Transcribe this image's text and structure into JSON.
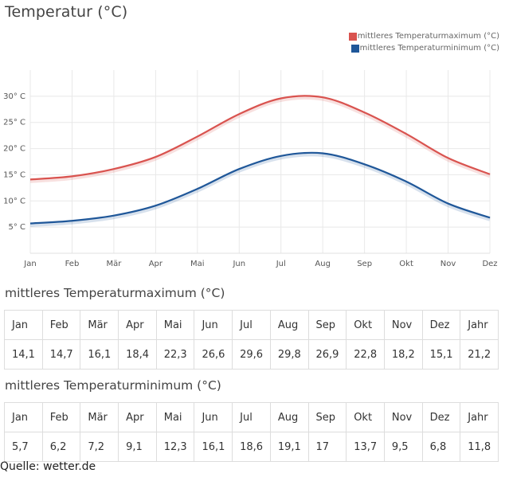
{
  "title": "Temperatur (°C)",
  "legend": {
    "max_label": "mittleres Temperaturmaximum (°C)",
    "min_label": "mittleres Temperaturminimum (°C)"
  },
  "colors": {
    "max": "#d9534f",
    "min": "#1f5799"
  },
  "chart_data": {
    "type": "line",
    "title": "Temperatur (°C)",
    "categories": [
      "Jan",
      "Feb",
      "Mär",
      "Apr",
      "Mai",
      "Jun",
      "Jul",
      "Aug",
      "Sep",
      "Okt",
      "Nov",
      "Dez"
    ],
    "y_ticks": [
      "5° C",
      "10° C",
      "15° C",
      "20° C",
      "25° C",
      "30° C"
    ],
    "y_tick_values": [
      5,
      10,
      15,
      20,
      25,
      30
    ],
    "ylim": [
      0,
      35
    ],
    "grid": true,
    "legend_position": "top-right",
    "series": [
      {
        "name": "mittleres Temperaturmaximum (°C)",
        "color": "#d9534f",
        "values": [
          14.1,
          14.7,
          16.1,
          18.4,
          22.3,
          26.6,
          29.6,
          29.8,
          26.9,
          22.8,
          18.2,
          15.1
        ]
      },
      {
        "name": "mittleres Temperaturminimum (°C)",
        "color": "#1f5799",
        "values": [
          5.7,
          6.2,
          7.2,
          9.1,
          12.3,
          16.1,
          18.6,
          19.1,
          17,
          13.7,
          9.5,
          6.8
        ]
      }
    ]
  },
  "tables": {
    "max": {
      "title": "mittleres Temperaturmaximum (°C)",
      "headers": [
        "Jan",
        "Feb",
        "Mär",
        "Apr",
        "Mai",
        "Jun",
        "Jul",
        "Aug",
        "Sep",
        "Okt",
        "Nov",
        "Dez",
        "Jahr"
      ],
      "values": [
        "14,1",
        "14,7",
        "16,1",
        "18,4",
        "22,3",
        "26,6",
        "29,6",
        "29,8",
        "26,9",
        "22,8",
        "18,2",
        "15,1",
        "21,2"
      ]
    },
    "min": {
      "title": "mittleres Temperaturminimum (°C)",
      "headers": [
        "Jan",
        "Feb",
        "Mär",
        "Apr",
        "Mai",
        "Jun",
        "Jul",
        "Aug",
        "Sep",
        "Okt",
        "Nov",
        "Dez",
        "Jahr"
      ],
      "values": [
        "5,7",
        "6,2",
        "7,2",
        "9,1",
        "12,3",
        "16,1",
        "18,6",
        "19,1",
        "17",
        "13,7",
        "9,5",
        "6,8",
        "11,8"
      ]
    }
  },
  "source": "Quelle: wetter.de"
}
